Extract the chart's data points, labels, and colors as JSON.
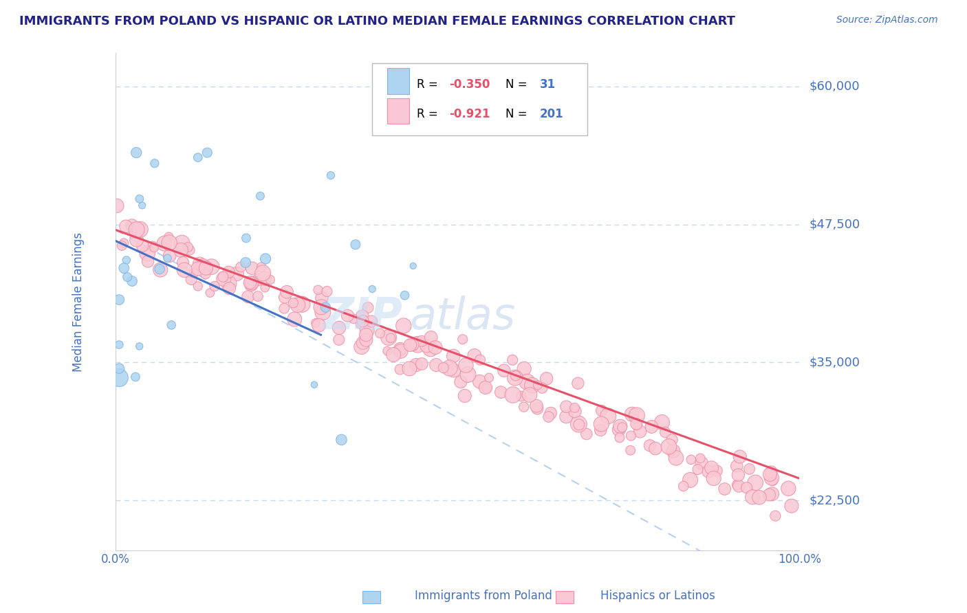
{
  "title": "IMMIGRANTS FROM POLAND VS HISPANIC OR LATINO MEDIAN FEMALE EARNINGS CORRELATION CHART",
  "source": "Source: ZipAtlas.com",
  "ylabel": "Median Female Earnings",
  "watermark_part1": "ZIP",
  "watermark_part2": "atlas",
  "yticks": [
    22500,
    35000,
    47500,
    60000
  ],
  "ytick_labels": [
    "$22,500",
    "$35,000",
    "$47,500",
    "$60,000"
  ],
  "xlim": [
    0,
    100
  ],
  "ylim": [
    18000,
    63000
  ],
  "color_blue_fill": "#AED4F0",
  "color_blue_edge": "#7EB6E8",
  "color_pink_fill": "#F9C8D4",
  "color_pink_edge": "#F090A8",
  "color_blue_line": "#4472C4",
  "color_pink_line": "#E8506A",
  "color_dashed": "#B8D0EE",
  "color_title": "#222288",
  "color_axis_label": "#4472C4",
  "color_ytick": "#4472C4",
  "color_xtick": "#4472C4",
  "color_source": "#4472C4",
  "background_color": "#FFFFFF",
  "grid_color": "#C8D8EE",
  "legend_r1_color": "#E8506A",
  "legend_n1_color": "#4472C4",
  "legend_r2_color": "#E8506A",
  "legend_n2_color": "#4472C4",
  "legend_box_color": "#EEEEEE",
  "legend_box_edge": "#BBBBBB",
  "bottom_legend_label1": "Immigrants from Poland",
  "bottom_legend_label2": "Hispanics or Latinos"
}
